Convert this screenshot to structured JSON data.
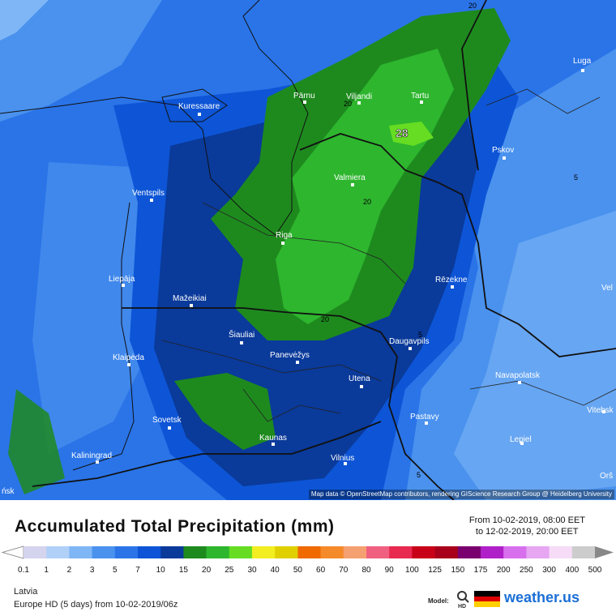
{
  "map": {
    "attribution": "Map data © OpenStreetMap contributors, rendering GIScience Research Group @ Heidelberg University",
    "cities": [
      {
        "name": "Pärnu"
      },
      {
        "name": "Viljandi"
      },
      {
        "name": "Tartu"
      },
      {
        "name": "Luga"
      },
      {
        "name": "Kuressaare"
      },
      {
        "name": "Pskov"
      },
      {
        "name": "Valmiera"
      },
      {
        "name": "Ventspils"
      },
      {
        "name": "Riga"
      },
      {
        "name": "Liepāja"
      },
      {
        "name": "Rēzekne"
      },
      {
        "name": "Mažeikiai"
      },
      {
        "name": "Šiauliai"
      },
      {
        "name": "Daugavpils"
      },
      {
        "name": "Klaipėda"
      },
      {
        "name": "Panevėžys"
      },
      {
        "name": "Navapolatsk"
      },
      {
        "name": "Utena"
      },
      {
        "name": "Vitebsk"
      },
      {
        "name": "Sovetsk"
      },
      {
        "name": "Pastavy"
      },
      {
        "name": "Kaunas"
      },
      {
        "name": "Lepiel"
      },
      {
        "name": "Kaliningrad"
      },
      {
        "name": "Vilnius"
      }
    ],
    "edge_labels": [
      "Vel",
      "Orš",
      "ńsk"
    ],
    "max_value_label": "28",
    "contour_labels": [
      "20",
      "20",
      "20",
      "20",
      "5",
      "5",
      "5"
    ]
  },
  "legend": {
    "title": "Accumulated Total Precipitation (mm)",
    "period_from": "From 10-02-2019, 08:00 EET",
    "period_to": "to 12-02-2019, 20:00 EET",
    "ticks": [
      "0.1",
      "1",
      "2",
      "3",
      "5",
      "7",
      "10",
      "15",
      "20",
      "25",
      "30",
      "40",
      "50",
      "60",
      "70",
      "80",
      "90",
      "100",
      "125",
      "150",
      "175",
      "200",
      "250",
      "300",
      "400",
      "500"
    ],
    "colors": [
      "#d4d4ee",
      "#b0d0f8",
      "#7fb6f6",
      "#4a92ee",
      "#2a74e8",
      "#0d55d6",
      "#0a3a9a",
      "#1e8a1e",
      "#2eb62e",
      "#66dd22",
      "#f2ee22",
      "#e0d000",
      "#f06a00",
      "#f58a2a",
      "#f5a070",
      "#f06080",
      "#e82a50",
      "#c80018",
      "#a8001a",
      "#7a0070",
      "#b020c8",
      "#d870ee",
      "#e6a6f2",
      "#f6dcf6",
      "#cccccc"
    ],
    "region": "Latvia",
    "model_info": "Europe HD (5 days) from 10-02-2019/06z",
    "model_label": "Model:",
    "model_badge": "HD",
    "brand": "weather.us",
    "flag_colors": [
      "#000000",
      "#dd0000",
      "#ffce00"
    ]
  }
}
